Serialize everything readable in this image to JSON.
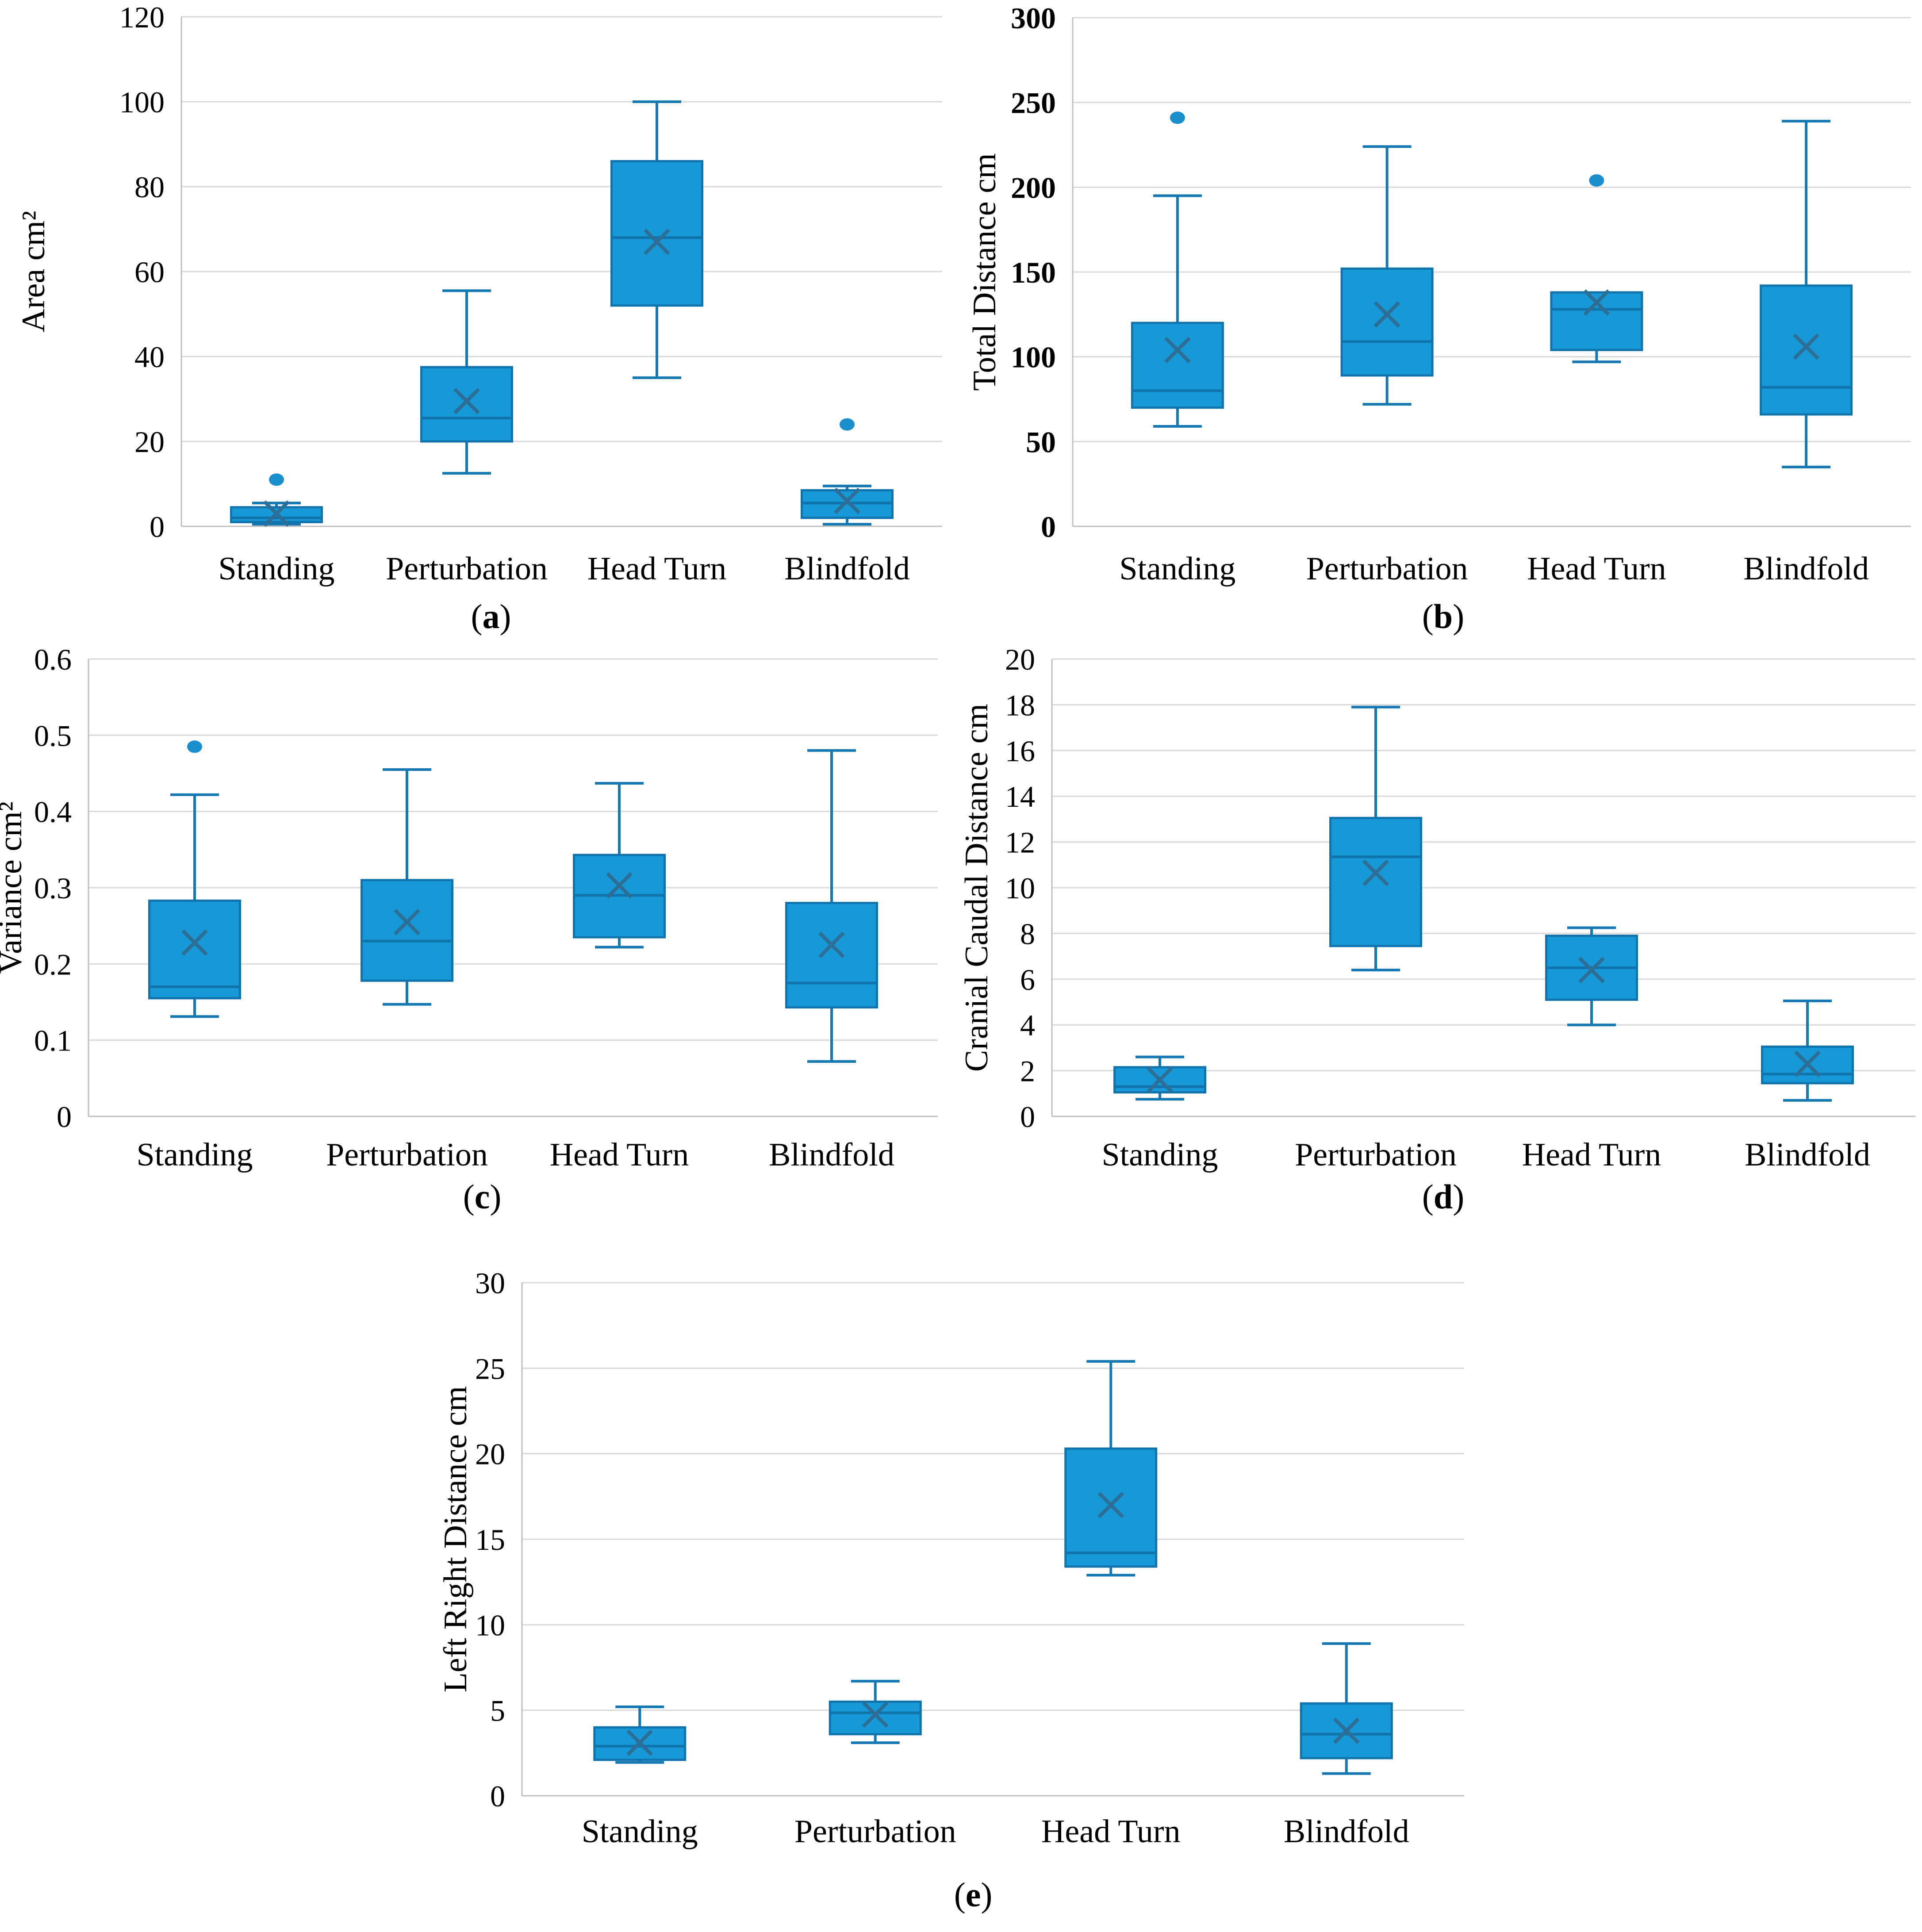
{
  "figure": {
    "background": "#ffffff",
    "description": "Five box-and-whisker subplots comparing four balance conditions"
  },
  "colors": {
    "box_fill": "#1699D6",
    "box_stroke": "#1173AC",
    "median_line": "#1173AC",
    "whisker": "#1578B2",
    "mean_marker": "#2C6E95",
    "outlier": "#1B8FCE",
    "gridline": "#D9D9D9",
    "axis_line": "#BFBFBF",
    "text": "#000000"
  },
  "chart_data": [
    {
      "id": "a",
      "type": "boxplot",
      "caption": "(a)",
      "caption_letter": "a",
      "ylabel": "Area cm²",
      "ylim": [
        0,
        120
      ],
      "ytick_step": 20,
      "grid": true,
      "legend": false,
      "categories": [
        "Standing",
        "Perturbation",
        "Head Turn",
        "Blindfold"
      ],
      "series": [
        {
          "category": "Standing",
          "whisker_low": 0.5,
          "q1": 1,
          "median": 2,
          "q3": 4.5,
          "whisker_high": 5.5,
          "mean": 3,
          "outliers": [
            11
          ]
        },
        {
          "category": "Perturbation",
          "whisker_low": 12.5,
          "q1": 20,
          "median": 25.5,
          "q3": 37.5,
          "whisker_high": 55.5,
          "mean": 29.5,
          "outliers": []
        },
        {
          "category": "Head Turn",
          "whisker_low": 35,
          "q1": 52,
          "median": 68,
          "q3": 86,
          "whisker_high": 100,
          "mean": 67,
          "outliers": []
        },
        {
          "category": "Blindfold",
          "whisker_low": 0.5,
          "q1": 2,
          "median": 5.5,
          "q3": 8.5,
          "whisker_high": 9.5,
          "mean": 6,
          "outliers": [
            24
          ]
        }
      ]
    },
    {
      "id": "b",
      "type": "boxplot",
      "caption": "(b)",
      "caption_letter": "b",
      "ylabel": "Total Distance cm",
      "ylim": [
        0,
        300
      ],
      "ytick_step": 50,
      "tick_style": "bold",
      "grid": true,
      "legend": false,
      "categories": [
        "Standing",
        "Perturbation",
        "Head Turn",
        "Blindfold"
      ],
      "series": [
        {
          "category": "Standing",
          "whisker_low": 59,
          "q1": 70,
          "median": 80,
          "q3": 120,
          "whisker_high": 195,
          "mean": 104,
          "outliers": [
            241
          ]
        },
        {
          "category": "Perturbation",
          "whisker_low": 72,
          "q1": 89,
          "median": 109,
          "q3": 152,
          "whisker_high": 224,
          "mean": 125,
          "outliers": []
        },
        {
          "category": "Head Turn",
          "whisker_low": 97,
          "q1": 104,
          "median": 128,
          "q3": 138,
          "whisker_high": 138,
          "mean": 132,
          "outliers": [
            204
          ]
        },
        {
          "category": "Blindfold",
          "whisker_low": 35,
          "q1": 66,
          "median": 82,
          "q3": 142,
          "whisker_high": 239,
          "mean": 106,
          "outliers": []
        }
      ]
    },
    {
      "id": "c",
      "type": "boxplot",
      "caption": "(c)",
      "caption_letter": "c",
      "ylabel": "Variance cm²",
      "ylim": [
        0,
        0.6
      ],
      "ytick_step": 0.1,
      "grid": true,
      "legend": false,
      "categories": [
        "Standing",
        "Perturbation",
        "Head Turn",
        "Blindfold"
      ],
      "series": [
        {
          "category": "Standing",
          "whisker_low": 0.131,
          "q1": 0.155,
          "median": 0.17,
          "q3": 0.283,
          "whisker_high": 0.422,
          "mean": 0.228,
          "outliers": [
            0.485
          ]
        },
        {
          "category": "Perturbation",
          "whisker_low": 0.147,
          "q1": 0.178,
          "median": 0.23,
          "q3": 0.31,
          "whisker_high": 0.455,
          "mean": 0.255,
          "outliers": []
        },
        {
          "category": "Head Turn",
          "whisker_low": 0.222,
          "q1": 0.235,
          "median": 0.29,
          "q3": 0.343,
          "whisker_high": 0.437,
          "mean": 0.303,
          "outliers": []
        },
        {
          "category": "Blindfold",
          "whisker_low": 0.072,
          "q1": 0.143,
          "median": 0.175,
          "q3": 0.28,
          "whisker_high": 0.48,
          "mean": 0.225,
          "outliers": []
        }
      ]
    },
    {
      "id": "d",
      "type": "boxplot",
      "caption": "(d)",
      "caption_letter": "d",
      "ylabel": "Cranial Caudal Distance cm",
      "ylim": [
        0,
        20
      ],
      "ytick_step": 2,
      "grid": true,
      "legend": false,
      "categories": [
        "Standing",
        "Perturbation",
        "Head Turn",
        "Blindfold"
      ],
      "series": [
        {
          "category": "Standing",
          "whisker_low": 0.75,
          "q1": 1.05,
          "median": 1.3,
          "q3": 2.15,
          "whisker_high": 2.6,
          "mean": 1.6,
          "outliers": []
        },
        {
          "category": "Perturbation",
          "whisker_low": 6.4,
          "q1": 7.45,
          "median": 11.35,
          "q3": 13.05,
          "whisker_high": 17.9,
          "mean": 10.65,
          "outliers": []
        },
        {
          "category": "Head Turn",
          "whisker_low": 4.0,
          "q1": 5.1,
          "median": 6.5,
          "q3": 7.9,
          "whisker_high": 8.25,
          "mean": 6.4,
          "outliers": []
        },
        {
          "category": "Blindfold",
          "whisker_low": 0.7,
          "q1": 1.45,
          "median": 1.85,
          "q3": 3.05,
          "whisker_high": 5.05,
          "mean": 2.3,
          "outliers": []
        }
      ]
    },
    {
      "id": "e",
      "type": "boxplot",
      "caption": "(e)",
      "caption_letter": "e",
      "ylabel": "Left Right Distance cm",
      "ylim": [
        0,
        30
      ],
      "ytick_step": 5,
      "grid": true,
      "legend": false,
      "categories": [
        "Standing",
        "Perturbation",
        "Head Turn",
        "Blindfold"
      ],
      "series": [
        {
          "category": "Standing",
          "whisker_low": 1.95,
          "q1": 2.1,
          "median": 2.9,
          "q3": 4.0,
          "whisker_high": 5.2,
          "mean": 3.1,
          "outliers": []
        },
        {
          "category": "Perturbation",
          "whisker_low": 3.1,
          "q1": 3.6,
          "median": 4.85,
          "q3": 5.5,
          "whisker_high": 6.7,
          "mean": 4.75,
          "outliers": []
        },
        {
          "category": "Head Turn",
          "whisker_low": 12.9,
          "q1": 13.4,
          "median": 14.2,
          "q3": 20.3,
          "whisker_high": 25.4,
          "mean": 17.0,
          "outliers": []
        },
        {
          "category": "Blindfold",
          "whisker_low": 1.3,
          "q1": 2.2,
          "median": 3.6,
          "q3": 5.4,
          "whisker_high": 8.9,
          "mean": 3.8,
          "outliers": []
        }
      ]
    }
  ]
}
